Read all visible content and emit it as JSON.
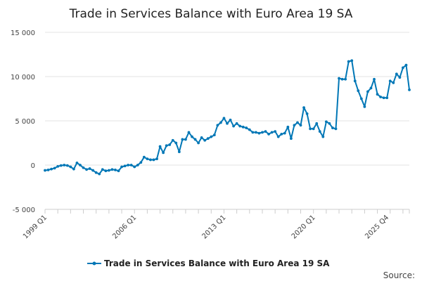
{
  "chart_data": {
    "type": "line",
    "title": "Trade in Services Balance with Euro Area 19 SA",
    "xlabel": "",
    "ylabel": "",
    "ylim": [
      -5000,
      15000
    ],
    "yticks": [
      15000,
      10000,
      5000,
      0,
      -5000
    ],
    "ytick_labels": [
      "15 000",
      "10 000",
      "5 000",
      "0",
      "-5 000"
    ],
    "xtick_labels": [
      {
        "label": "1999 Q1",
        "index": 0
      },
      {
        "label": "2006 Q1",
        "index": 28
      },
      {
        "label": "2013 Q1",
        "index": 56
      },
      {
        "label": "2020 Q1",
        "index": 84
      },
      {
        "label": "2025 Q4",
        "index": 107
      }
    ],
    "grid": true,
    "legend_position": "bottom",
    "series": [
      {
        "name": "Trade in Services Balance with Euro Area 19 SA",
        "color": "#0077b6",
        "values": [
          -600,
          -550,
          -450,
          -350,
          -150,
          -50,
          0,
          -50,
          -200,
          -450,
          250,
          0,
          -300,
          -500,
          -400,
          -600,
          -850,
          -1000,
          -500,
          -650,
          -600,
          -500,
          -550,
          -650,
          -200,
          -100,
          0,
          0,
          -200,
          0,
          300,
          900,
          700,
          600,
          600,
          700,
          2100,
          1400,
          2200,
          2300,
          2800,
          2500,
          1500,
          2900,
          2900,
          3700,
          3200,
          2900,
          2500,
          3100,
          2800,
          3000,
          3200,
          3400,
          4500,
          4800,
          5300,
          4700,
          5100,
          4400,
          4700,
          4400,
          4300,
          4200,
          4000,
          3700,
          3700,
          3600,
          3700,
          3800,
          3500,
          3700,
          3800,
          3200,
          3500,
          3600,
          4300,
          3000,
          4500,
          4800,
          4500,
          6500,
          5800,
          4100,
          4100,
          4700,
          3800,
          3200,
          4900,
          4700,
          4200,
          4100,
          9800,
          9700,
          9700,
          11700,
          11800,
          9500,
          8400,
          7500,
          6600,
          8300,
          8700,
          9700,
          8000,
          7700,
          7600,
          7600,
          9500,
          9300,
          10300,
          9900,
          11000,
          11300,
          8500
        ]
      }
    ],
    "source_label": "Source:"
  }
}
